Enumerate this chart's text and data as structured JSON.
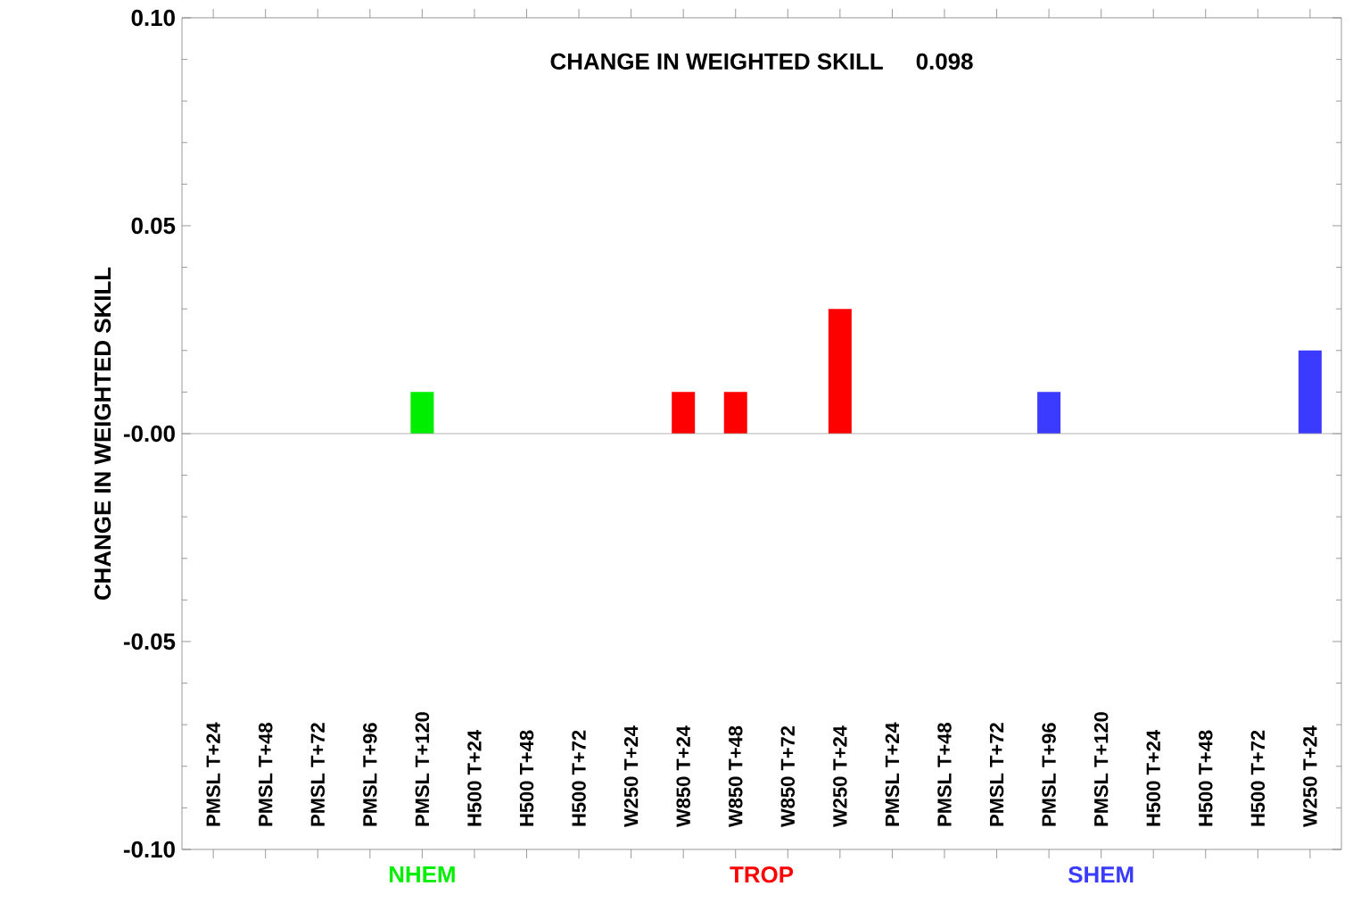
{
  "chart_data": {
    "type": "bar",
    "title": "CHANGE IN WEIGHTED SKILL",
    "subtitle": "0.098",
    "ylabel": "CHANGE IN WEIGHTED SKILL",
    "categories": [
      "PMSL  T+24",
      "PMSL  T+48",
      "PMSL  T+72",
      "PMSL  T+96",
      "PMSL  T+120",
      "H500  T+24",
      "H500  T+48",
      "H500  T+72",
      "W250  T+24",
      "W850  T+24",
      "W850  T+48",
      "W850  T+72",
      "W250  T+24",
      "PMSL  T+24",
      "PMSL  T+48",
      "PMSL  T+72",
      "PMSL  T+96",
      "PMSL  T+120",
      "H500  T+24",
      "H500  T+48",
      "H500  T+72",
      "W250  T+24"
    ],
    "values": [
      0,
      0,
      0,
      0,
      0.01,
      0,
      0,
      0,
      0,
      0.01,
      0.01,
      0,
      0.03,
      0,
      0,
      0,
      0.01,
      0,
      0,
      0,
      0,
      0.02
    ],
    "colors": [
      "#00ee00",
      "#00ee00",
      "#00ee00",
      "#00ee00",
      "#00ee00",
      "#00ee00",
      "#00ee00",
      "#00ee00",
      "#00ee00",
      "#ff0000",
      "#ff0000",
      "#ff0000",
      "#ff0000",
      "#3b3bff",
      "#3b3bff",
      "#3b3bff",
      "#3b3bff",
      "#3b3bff",
      "#3b3bff",
      "#3b3bff",
      "#3b3bff",
      "#3b3bff"
    ],
    "ylim": [
      -0.1,
      0.1
    ],
    "yticks": [
      {
        "value": -0.1,
        "label": "-0.10"
      },
      {
        "value": -0.05,
        "label": "-0.05"
      },
      {
        "value": 0,
        "label": "-0.00"
      },
      {
        "value": 0.05,
        "label": "0.05"
      },
      {
        "value": 0.1,
        "label": "0.10"
      }
    ],
    "annotations": [
      "NHEM",
      "TROP",
      "SHEM"
    ],
    "ref_lines": [
      {
        "axis": "y",
        "value": 0,
        "color": "#a0a0a0"
      }
    ]
  }
}
